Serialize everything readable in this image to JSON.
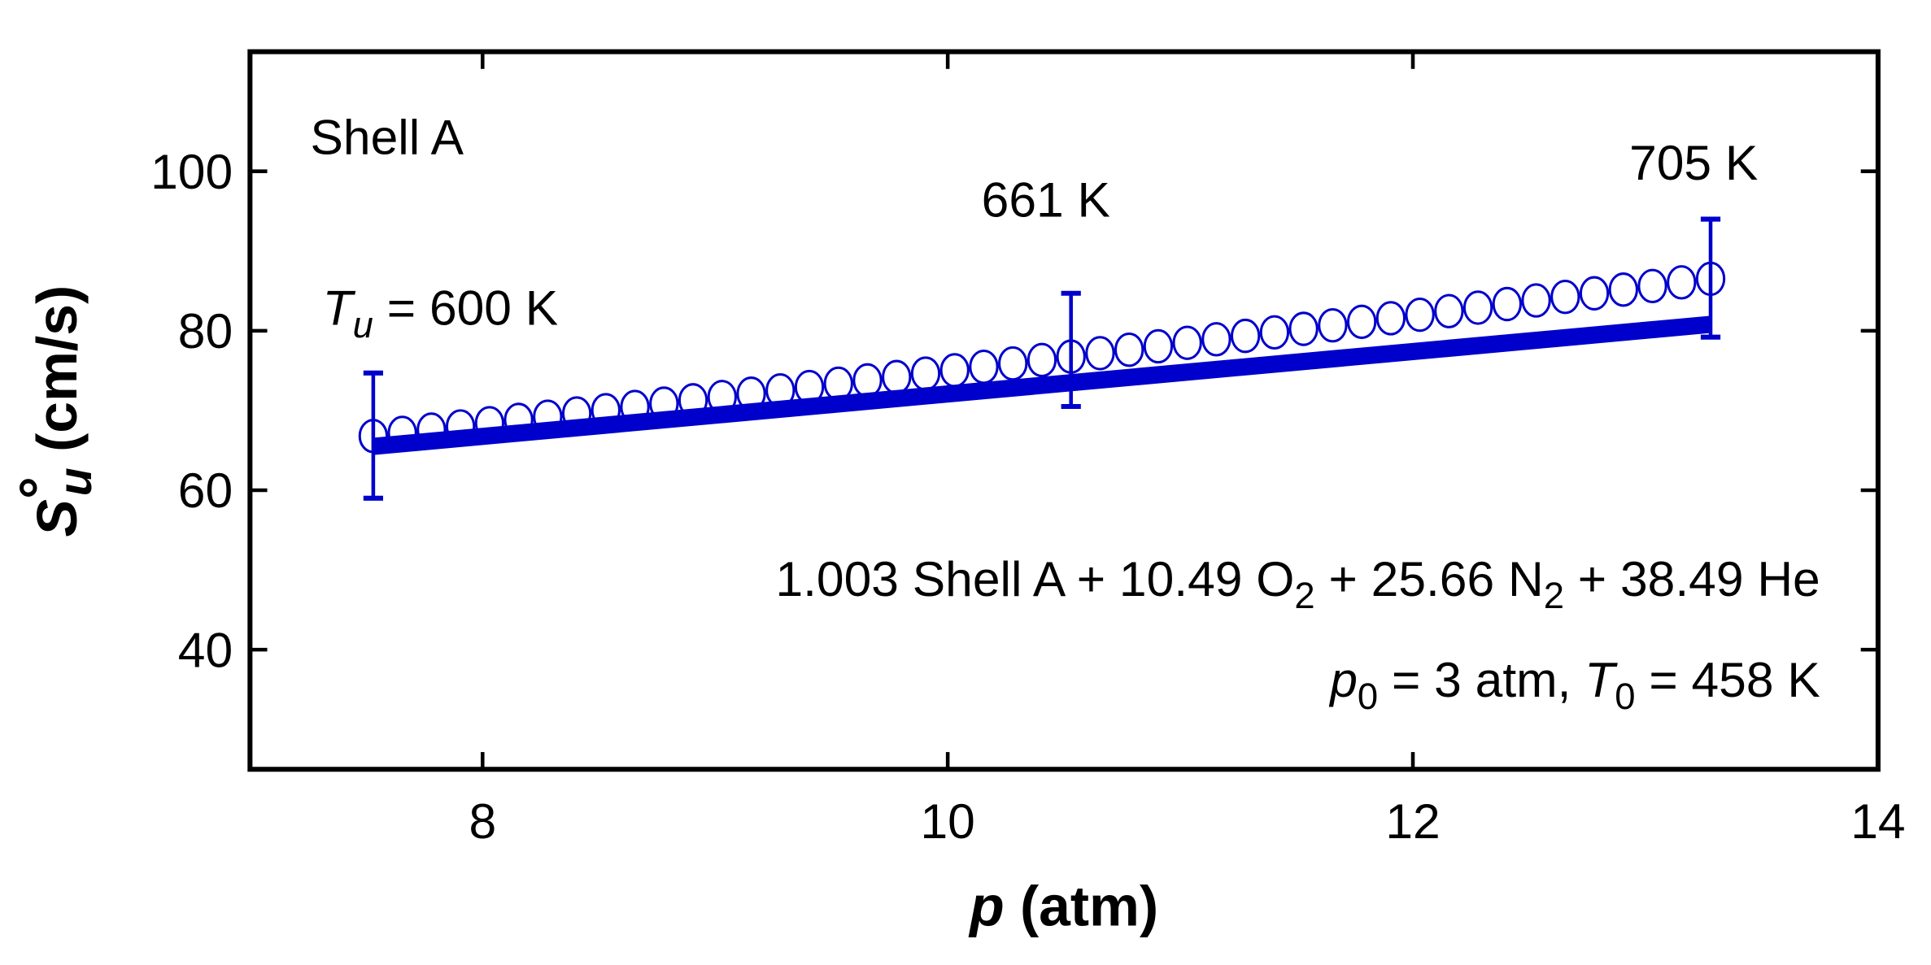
{
  "chart_data": {
    "type": "scatter",
    "title": "",
    "xlabel": {
      "italic": "p",
      "rest": " (atm)"
    },
    "ylabel": {
      "main": "S",
      "sup": "°",
      "sub": "u",
      "rest": " (cm/s)"
    },
    "xlim": [
      7,
      14
    ],
    "ylim": [
      25,
      115
    ],
    "xticks": [
      8,
      10,
      12,
      14
    ],
    "yticks": [
      40,
      60,
      80,
      100
    ],
    "grid": false,
    "color": "#0000CC",
    "series": [
      {
        "name": "circles",
        "marker": "open-circle",
        "x": [
          7.53,
          7.655,
          7.78,
          7.905,
          8.03,
          8.155,
          8.28,
          8.405,
          8.53,
          8.655,
          8.78,
          8.905,
          9.03,
          9.155,
          9.28,
          9.405,
          9.53,
          9.655,
          9.78,
          9.905,
          10.03,
          10.155,
          10.28,
          10.405,
          10.53,
          10.655,
          10.78,
          10.905,
          11.03,
          11.155,
          11.28,
          11.405,
          11.53,
          11.655,
          11.78,
          11.905,
          12.03,
          12.155,
          12.28,
          12.405,
          12.53,
          12.655,
          12.78,
          12.905,
          13.03,
          13.155,
          13.28
        ],
        "y": [
          66.8,
          67.2,
          67.6,
          68.0,
          68.41,
          68.82,
          69.22,
          69.63,
          70.04,
          70.45,
          70.86,
          71.28,
          71.69,
          72.11,
          72.52,
          72.94,
          73.36,
          73.78,
          74.2,
          74.63,
          75.05,
          75.48,
          75.9,
          76.33,
          76.76,
          77.19,
          77.62,
          78.05,
          78.49,
          78.93,
          79.36,
          79.8,
          80.24,
          80.68,
          81.12,
          81.57,
          82.01,
          82.46,
          82.9,
          83.35,
          83.8,
          84.25,
          84.7,
          85.16,
          85.61,
          86.07,
          86.52
        ]
      },
      {
        "name": "line",
        "marker": "thick-line",
        "x": [
          7.53,
          13.28
        ],
        "y": [
          65.5,
          80.8
        ]
      }
    ],
    "error_bars": [
      {
        "x": 7.53,
        "low": 59.0,
        "high": 74.7
      },
      {
        "x": 10.53,
        "low": 70.5,
        "high": 84.7
      },
      {
        "x": 13.28,
        "low": 79.2,
        "high": 94.0
      }
    ],
    "annotations": {
      "shell": "Shell A",
      "tu_main": "T",
      "tu_sub": "u",
      "tu_rest": " = 600 K",
      "t661": "661 K",
      "t705": "705 K",
      "mix": [
        "1.003 Shell A + 10.49 O",
        "2",
        " + 25.66 N",
        "2",
        " + 38.49 He"
      ],
      "cond": [
        "p",
        "0",
        " = 3 atm, ",
        "T",
        "0",
        " = 458 K"
      ]
    }
  }
}
